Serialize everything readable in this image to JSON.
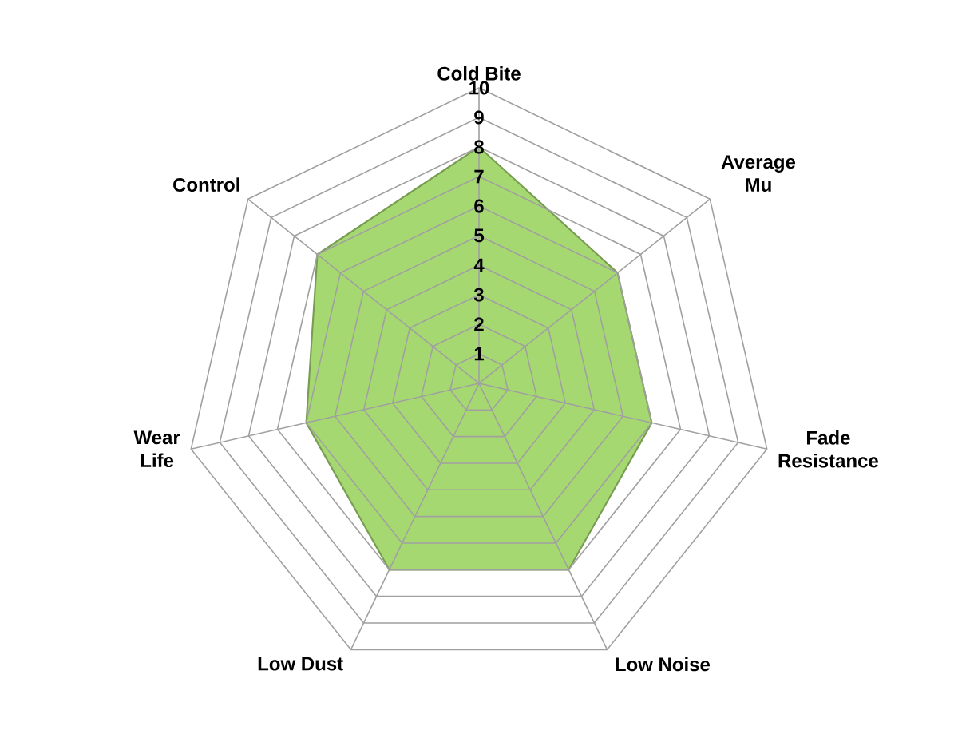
{
  "chart_data": {
    "type": "radar",
    "categories": [
      "Cold Bite",
      "Average Mu",
      "Fade Resistance",
      "Low Noise",
      "Low Dust",
      "Wear Life",
      "Control"
    ],
    "series": [
      {
        "color": "#a6d872",
        "values": [
          8,
          6,
          6,
          7,
          7,
          6,
          7
        ]
      }
    ],
    "ylim": [
      0,
      10
    ],
    "yticks": [
      1,
      2,
      3,
      4,
      5,
      6,
      7,
      8,
      9,
      10
    ],
    "grid": true
  }
}
